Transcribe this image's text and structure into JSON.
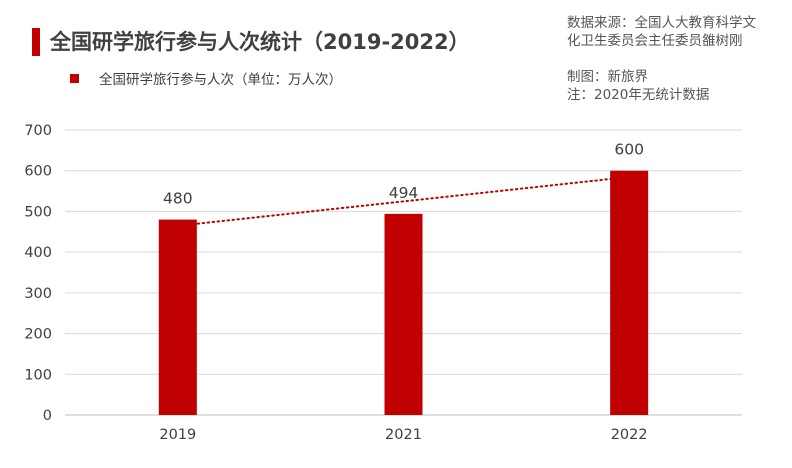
{
  "chart_data": {
    "type": "bar",
    "title": "全国研学旅行参与人次统计（2019-2022）",
    "categories": [
      "2019",
      "2021",
      "2022"
    ],
    "series": [
      {
        "name": "全国研学旅行参与人次（单位：万人次）",
        "values": [
          480,
          494,
          600
        ],
        "color": "#c00000"
      }
    ],
    "data_labels": [
      "480",
      "494",
      "600"
    ],
    "ylim": [
      0,
      700
    ],
    "yticks": [
      0,
      100,
      200,
      300,
      400,
      500,
      600,
      700
    ],
    "grid": true,
    "legend": "top-left",
    "trendline": {
      "type": "linear",
      "style": "dotted",
      "color": "#c00000"
    }
  },
  "annotations": {
    "source_line1": "数据来源：全国人大教育科学文",
    "source_line2": "化卫生委员会主任委员雒树刚",
    "made_by": "制图：新旅界",
    "note": "注：2020年无统计数据"
  }
}
